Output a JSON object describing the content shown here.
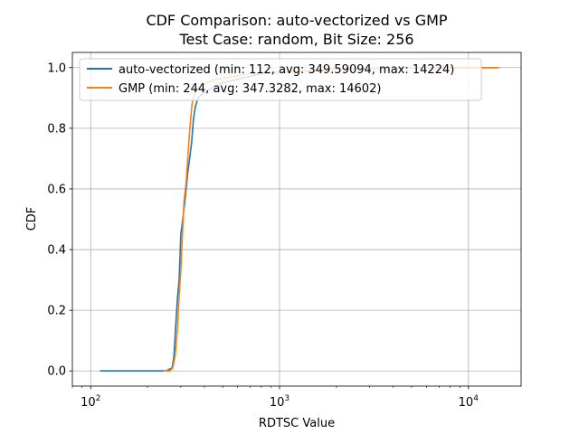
{
  "chart_data": {
    "type": "line",
    "title": "CDF Comparison: auto-vectorized vs GMP",
    "subtitle": "Test Case: random, Bit Size: 256",
    "xlabel": "RDTSC Value",
    "ylabel": "CDF",
    "xscale": "log",
    "xlim": [
      80,
      19000
    ],
    "ylim": [
      -0.05,
      1.05
    ],
    "grid": true,
    "legend_position": "top-left",
    "x_major_ticks": [
      {
        "value": 100,
        "base": "10",
        "exp": "2"
      },
      {
        "value": 1000,
        "base": "10",
        "exp": "3"
      },
      {
        "value": 10000,
        "base": "10",
        "exp": "4"
      }
    ],
    "y_ticks": [
      {
        "value": 0.0,
        "label": "0.0"
      },
      {
        "value": 0.2,
        "label": "0.2"
      },
      {
        "value": 0.4,
        "label": "0.4"
      },
      {
        "value": 0.6,
        "label": "0.6"
      },
      {
        "value": 0.8,
        "label": "0.8"
      },
      {
        "value": 1.0,
        "label": "1.0"
      }
    ],
    "series": [
      {
        "name": "auto-vectorized (min: 112, avg: 349.59094, max: 14224)",
        "color": "#1f77b4",
        "points": [
          [
            112,
            0.0
          ],
          [
            250,
            0.0
          ],
          [
            270,
            0.01
          ],
          [
            276,
            0.05
          ],
          [
            282,
            0.15
          ],
          [
            288,
            0.24
          ],
          [
            294,
            0.3
          ],
          [
            300,
            0.45
          ],
          [
            310,
            0.52
          ],
          [
            318,
            0.58
          ],
          [
            326,
            0.65
          ],
          [
            334,
            0.7
          ],
          [
            342,
            0.75
          ],
          [
            350,
            0.83
          ],
          [
            358,
            0.87
          ],
          [
            370,
            0.9
          ],
          [
            400,
            0.92
          ],
          [
            500,
            0.95
          ],
          [
            800,
            0.98
          ],
          [
            2000,
            0.995
          ],
          [
            5000,
            0.999
          ],
          [
            14224,
            1.0
          ]
        ]
      },
      {
        "name": "GMP (min: 244, avg: 347.3282, max: 14602)",
        "color": "#ff7f0e",
        "points": [
          [
            244,
            0.0
          ],
          [
            262,
            0.0
          ],
          [
            272,
            0.01
          ],
          [
            280,
            0.05
          ],
          [
            288,
            0.14
          ],
          [
            294,
            0.25
          ],
          [
            300,
            0.33
          ],
          [
            306,
            0.45
          ],
          [
            312,
            0.56
          ],
          [
            320,
            0.62
          ],
          [
            328,
            0.72
          ],
          [
            336,
            0.81
          ],
          [
            344,
            0.88
          ],
          [
            356,
            0.92
          ],
          [
            380,
            0.94
          ],
          [
            450,
            0.96
          ],
          [
            700,
            0.98
          ],
          [
            2000,
            0.995
          ],
          [
            6000,
            0.999
          ],
          [
            14602,
            1.0
          ]
        ]
      }
    ]
  }
}
